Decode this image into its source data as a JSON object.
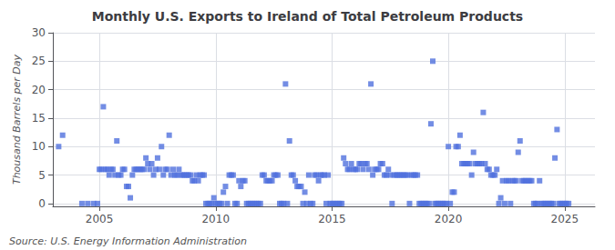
{
  "chart_data": {
    "type": "scatter",
    "title": "Monthly U.S. Exports to Ireland of Total Petroleum Products",
    "ylabel": "Thousand Barrels per Day",
    "annotations": [
      "Source: U.S. Energy Information Administration"
    ],
    "marker": "square",
    "grid": true,
    "xlim": [
      2003.0,
      2026.3
    ],
    "ylim": [
      -0.5,
      30
    ],
    "xticks": [
      2005,
      2010,
      2015,
      2020,
      2025
    ],
    "yticks": [
      0,
      5,
      10,
      15,
      20,
      25,
      30
    ],
    "x": [
      2003.25,
      2003.42,
      2004.25,
      2004.5,
      2004.75,
      2004.92,
      2005.0,
      2005.08,
      2005.17,
      2005.25,
      2005.33,
      2005.42,
      2005.5,
      2005.58,
      2005.67,
      2005.75,
      2005.83,
      2005.92,
      2006.0,
      2006.08,
      2006.17,
      2006.25,
      2006.33,
      2006.42,
      2006.5,
      2006.58,
      2006.67,
      2006.75,
      2006.83,
      2006.92,
      2007.0,
      2007.08,
      2007.17,
      2007.25,
      2007.33,
      2007.42,
      2007.5,
      2007.58,
      2007.67,
      2007.75,
      2007.83,
      2007.92,
      2008.0,
      2008.08,
      2008.17,
      2008.25,
      2008.33,
      2008.42,
      2008.5,
      2008.58,
      2008.67,
      2008.75,
      2008.83,
      2008.92,
      2009.0,
      2009.08,
      2009.17,
      2009.25,
      2009.33,
      2009.42,
      2009.5,
      2009.58,
      2009.67,
      2009.75,
      2009.83,
      2009.92,
      2010.0,
      2010.08,
      2010.17,
      2010.25,
      2010.33,
      2010.42,
      2010.5,
      2010.58,
      2010.67,
      2010.75,
      2010.83,
      2010.92,
      2011.0,
      2011.08,
      2011.17,
      2011.25,
      2011.33,
      2011.42,
      2011.5,
      2011.58,
      2011.67,
      2011.75,
      2011.83,
      2011.92,
      2012.0,
      2012.08,
      2012.17,
      2012.25,
      2012.33,
      2012.42,
      2012.5,
      2012.58,
      2012.67,
      2012.75,
      2012.83,
      2012.92,
      2013.0,
      2013.08,
      2013.17,
      2013.25,
      2013.33,
      2013.42,
      2013.5,
      2013.58,
      2013.67,
      2013.75,
      2013.83,
      2013.92,
      2014.0,
      2014.08,
      2014.17,
      2014.25,
      2014.33,
      2014.42,
      2014.5,
      2014.58,
      2014.67,
      2014.75,
      2014.83,
      2014.92,
      2015.0,
      2015.08,
      2015.17,
      2015.25,
      2015.33,
      2015.42,
      2015.5,
      2015.58,
      2015.67,
      2015.75,
      2015.83,
      2015.92,
      2016.0,
      2016.08,
      2016.17,
      2016.25,
      2016.33,
      2016.42,
      2016.5,
      2016.58,
      2016.67,
      2016.75,
      2016.83,
      2016.92,
      2017.0,
      2017.08,
      2017.17,
      2017.25,
      2017.33,
      2017.42,
      2017.5,
      2017.58,
      2017.67,
      2017.75,
      2017.83,
      2017.92,
      2018.0,
      2018.08,
      2018.17,
      2018.25,
      2018.33,
      2018.42,
      2018.5,
      2018.58,
      2018.67,
      2018.75,
      2018.83,
      2018.92,
      2019.0,
      2019.08,
      2019.17,
      2019.25,
      2019.33,
      2019.42,
      2019.5,
      2019.58,
      2019.67,
      2019.75,
      2019.83,
      2019.92,
      2020.0,
      2020.08,
      2020.17,
      2020.25,
      2020.33,
      2020.42,
      2020.5,
      2020.58,
      2020.67,
      2020.75,
      2020.83,
      2020.92,
      2021.0,
      2021.08,
      2021.17,
      2021.25,
      2021.33,
      2021.42,
      2021.5,
      2021.58,
      2021.67,
      2021.75,
      2021.83,
      2021.92,
      2022.0,
      2022.08,
      2022.17,
      2022.25,
      2022.33,
      2022.42,
      2022.5,
      2022.58,
      2022.67,
      2022.75,
      2022.83,
      2022.92,
      2023.0,
      2023.08,
      2023.17,
      2023.25,
      2023.33,
      2023.42,
      2023.5,
      2023.58,
      2023.67,
      2023.75,
      2023.83,
      2023.92,
      2024.0,
      2024.08,
      2024.17,
      2024.25,
      2024.33,
      2024.42,
      2024.5,
      2024.58,
      2024.67,
      2024.75,
      2024.83,
      2024.92,
      2025.0,
      2025.08,
      2025.17
    ],
    "values": [
      10,
      12,
      0,
      0,
      0,
      0,
      6,
      6,
      17,
      6,
      6,
      5,
      6,
      6,
      5,
      11,
      5,
      5,
      6,
      6,
      3,
      3,
      1,
      5,
      6,
      6,
      6,
      6,
      6,
      6,
      8,
      7,
      6,
      7,
      5,
      6,
      8,
      6,
      10,
      5,
      6,
      6,
      12,
      5,
      6,
      5,
      5,
      6,
      5,
      5,
      5,
      5,
      5,
      5,
      4,
      4,
      5,
      4,
      5,
      5,
      5,
      0,
      0,
      0,
      0,
      1,
      0,
      0,
      0,
      0,
      2,
      3,
      0,
      5,
      5,
      5,
      0,
      0,
      4,
      3,
      4,
      4,
      0,
      0,
      0,
      0,
      0,
      0,
      0,
      0,
      5,
      5,
      4,
      4,
      4,
      4,
      5,
      5,
      5,
      0,
      0,
      0,
      21,
      0,
      11,
      5,
      5,
      4,
      3,
      3,
      3,
      0,
      2,
      0,
      5,
      0,
      0,
      5,
      5,
      4,
      5,
      5,
      5,
      0,
      5,
      0,
      0,
      0,
      0,
      0,
      0,
      0,
      8,
      7,
      6,
      6,
      7,
      6,
      6,
      6,
      7,
      7,
      6,
      7,
      7,
      6,
      21,
      5,
      6,
      6,
      6,
      7,
      7,
      5,
      5,
      6,
      5,
      0,
      5,
      5,
      5,
      5,
      5,
      5,
      5,
      5,
      0,
      5,
      5,
      5,
      5,
      0,
      0,
      0,
      0,
      0,
      0,
      14,
      25,
      0,
      0,
      0,
      0,
      0,
      0,
      0,
      10,
      0,
      2,
      2,
      10,
      10,
      12,
      7,
      7,
      7,
      7,
      7,
      5,
      9,
      7,
      7,
      7,
      7,
      16,
      7,
      6,
      6,
      5,
      5,
      5,
      6,
      0,
      1,
      4,
      0,
      4,
      4,
      0,
      4,
      4,
      4,
      9,
      11,
      4,
      4,
      4,
      4,
      4,
      4,
      0,
      0,
      0,
      4,
      0,
      0,
      0,
      0,
      0,
      0,
      0,
      8,
      13,
      0,
      0,
      0,
      0,
      0,
      0
    ]
  }
}
